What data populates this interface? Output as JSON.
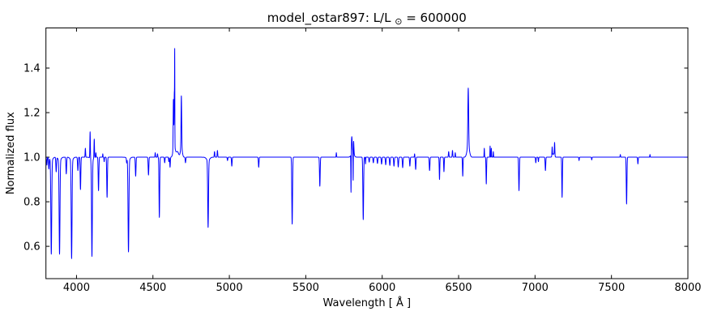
{
  "chart_data": {
    "type": "line",
    "title": "model_ostar897: L/L⊙ = 600000",
    "title_parts": {
      "main": "model_ostar897: L/L",
      "subscript": "⊙",
      "rest": " = 600000"
    },
    "xlabel": "Wavelength [ Å ]",
    "ylabel": "Normalized flux",
    "xlim": [
      3800,
      8000
    ],
    "ylim": [
      0.455,
      1.58
    ],
    "xticks": [
      4000,
      4500,
      5000,
      5500,
      6000,
      6500,
      7000,
      7500,
      8000
    ],
    "xtick_labels": [
      "4000",
      "4500",
      "5000",
      "5500",
      "6000",
      "6500",
      "7000",
      "7500",
      "8000"
    ],
    "yticks": [
      0.6,
      0.8,
      1.0,
      1.2,
      1.4
    ],
    "ytick_labels": [
      "0.6",
      "0.8",
      "1.0",
      "1.2",
      "1.4"
    ],
    "grid": false,
    "legend": null,
    "line_color": "#0000ff",
    "axis_color": "#000000",
    "background": "#ffffff",
    "continuum": 1.0,
    "series_name": "normalized flux spectrum",
    "lines": [
      {
        "wl": 3806,
        "amp": -0.035,
        "sigma": 2.0
      },
      {
        "wl": 3819,
        "amp": -0.05,
        "sigma": 2.0
      },
      {
        "wl": 3835,
        "amp": -0.42,
        "sigma": 2.8
      },
      {
        "wl": 3835,
        "amp": -0.015,
        "sigma": 9
      },
      {
        "wl": 3867,
        "amp": -0.065,
        "sigma": 2.2
      },
      {
        "wl": 3889,
        "amp": -0.42,
        "sigma": 2.8
      },
      {
        "wl": 3889,
        "amp": -0.015,
        "sigma": 9
      },
      {
        "wl": 3933,
        "amp": -0.075,
        "sigma": 2.2
      },
      {
        "wl": 3968,
        "amp": -0.44,
        "sigma": 2.8
      },
      {
        "wl": 3968,
        "amp": -0.015,
        "sigma": 9
      },
      {
        "wl": 4009,
        "amp": -0.06,
        "sigma": 2.2
      },
      {
        "wl": 4026,
        "amp": -0.145,
        "sigma": 2.2
      },
      {
        "wl": 4058,
        "amp": 0.04,
        "sigma": 1.6
      },
      {
        "wl": 4089,
        "amp": 0.12,
        "sigma": 1.6
      },
      {
        "wl": 4101,
        "amp": -0.43,
        "sigma": 2.6
      },
      {
        "wl": 4101,
        "amp": -0.015,
        "sigma": 9
      },
      {
        "wl": 4116,
        "amp": 0.085,
        "sigma": 1.6
      },
      {
        "wl": 4127,
        "amp": 0.02,
        "sigma": 1.5
      },
      {
        "wl": 4144,
        "amp": -0.15,
        "sigma": 2.2
      },
      {
        "wl": 4172,
        "amp": 0.015,
        "sigma": 1.2
      },
      {
        "wl": 4181,
        "amp": -0.02,
        "sigma": 1.5
      },
      {
        "wl": 4200,
        "amp": -0.18,
        "sigma": 2.2
      },
      {
        "wl": 4328,
        "amp": -0.02,
        "sigma": 1.5
      },
      {
        "wl": 4340,
        "amp": -0.41,
        "sigma": 2.8
      },
      {
        "wl": 4340,
        "amp": -0.015,
        "sigma": 9
      },
      {
        "wl": 4387,
        "amp": -0.085,
        "sigma": 2.2
      },
      {
        "wl": 4471,
        "amp": -0.08,
        "sigma": 2.2
      },
      {
        "wl": 4515,
        "amp": 0.02,
        "sigma": 1.5
      },
      {
        "wl": 4530,
        "amp": 0.015,
        "sigma": 1.5
      },
      {
        "wl": 4542,
        "amp": -0.27,
        "sigma": 2.2
      },
      {
        "wl": 4577,
        "amp": -0.025,
        "sigma": 1.8
      },
      {
        "wl": 4604,
        "amp": -0.02,
        "sigma": 1.5
      },
      {
        "wl": 4612,
        "amp": -0.045,
        "sigma": 1.8
      },
      {
        "wl": 4634,
        "amp": 0.22,
        "sigma": 1.7
      },
      {
        "wl": 4639,
        "amp": 0.05,
        "sigma": 7
      },
      {
        "wl": 4640,
        "amp": 0.24,
        "sigma": 1.7
      },
      {
        "wl": 4642.5,
        "amp": 0.36,
        "sigma": 0.8
      },
      {
        "wl": 4660,
        "amp": 0.025,
        "sigma": 8
      },
      {
        "wl": 4686,
        "amp": 0.23,
        "sigma": 2.0
      },
      {
        "wl": 4686,
        "amp": 0.045,
        "sigma": 6
      },
      {
        "wl": 4713,
        "amp": -0.025,
        "sigma": 2.0
      },
      {
        "wl": 4861,
        "amp": -0.3,
        "sigma": 2.6
      },
      {
        "wl": 4861,
        "amp": -0.015,
        "sigma": 10
      },
      {
        "wl": 4903,
        "amp": 0.025,
        "sigma": 1.8
      },
      {
        "wl": 4922,
        "amp": 0.03,
        "sigma": 1.8
      },
      {
        "wl": 4988,
        "amp": -0.015,
        "sigma": 1.8
      },
      {
        "wl": 5016,
        "amp": -0.04,
        "sigma": 2.0
      },
      {
        "wl": 5192,
        "amp": -0.045,
        "sigma": 2.0
      },
      {
        "wl": 5411,
        "amp": -0.3,
        "sigma": 2.4
      },
      {
        "wl": 5592,
        "amp": -0.13,
        "sigma": 2.2
      },
      {
        "wl": 5700,
        "amp": 0.02,
        "sigma": 1.4
      },
      {
        "wl": 5796,
        "amp": -0.18,
        "sigma": 1.1
      },
      {
        "wl": 5801,
        "amp": 0.075,
        "sigma": 2.6
      },
      {
        "wl": 5806,
        "amp": 0.02,
        "sigma": 9
      },
      {
        "wl": 5810,
        "amp": -0.17,
        "sigma": 1.1
      },
      {
        "wl": 5812,
        "amp": 0.065,
        "sigma": 2.6
      },
      {
        "wl": 5876,
        "amp": -0.28,
        "sigma": 2.4
      },
      {
        "wl": 5891,
        "amp": -0.03,
        "sigma": 1.2
      },
      {
        "wl": 5915,
        "amp": -0.022,
        "sigma": 2.2
      },
      {
        "wl": 5942,
        "amp": -0.025,
        "sigma": 2.2
      },
      {
        "wl": 5969,
        "amp": -0.028,
        "sigma": 2.2
      },
      {
        "wl": 5996,
        "amp": -0.031,
        "sigma": 2.2
      },
      {
        "wl": 6023,
        "amp": -0.034,
        "sigma": 2.2
      },
      {
        "wl": 6050,
        "amp": -0.037,
        "sigma": 2.2
      },
      {
        "wl": 6077,
        "amp": -0.04,
        "sigma": 2.2
      },
      {
        "wl": 6105,
        "amp": -0.044,
        "sigma": 2.2
      },
      {
        "wl": 6134,
        "amp": -0.047,
        "sigma": 2.2
      },
      {
        "wl": 6181,
        "amp": -0.04,
        "sigma": 2.0
      },
      {
        "wl": 6212,
        "amp": 0.015,
        "sigma": 1.3
      },
      {
        "wl": 6219,
        "amp": -0.055,
        "sigma": 2.0
      },
      {
        "wl": 6310,
        "amp": -0.06,
        "sigma": 2.2
      },
      {
        "wl": 6375,
        "amp": -0.1,
        "sigma": 1.8
      },
      {
        "wl": 6404,
        "amp": -0.065,
        "sigma": 1.8
      },
      {
        "wl": 6435,
        "amp": 0.025,
        "sigma": 1.8
      },
      {
        "wl": 6460,
        "amp": 0.03,
        "sigma": 1.8
      },
      {
        "wl": 6478,
        "amp": 0.02,
        "sigma": 1.5
      },
      {
        "wl": 6527,
        "amp": -0.085,
        "sigma": 1.8
      },
      {
        "wl": 6563,
        "amp": 0.26,
        "sigma": 2.6
      },
      {
        "wl": 6563,
        "amp": 0.05,
        "sigma": 8
      },
      {
        "wl": 6668,
        "amp": 0.04,
        "sigma": 1.3
      },
      {
        "wl": 6681,
        "amp": -0.12,
        "sigma": 1.8
      },
      {
        "wl": 6706,
        "amp": 0.05,
        "sigma": 1.2
      },
      {
        "wl": 6714,
        "amp": 0.04,
        "sigma": 1.2
      },
      {
        "wl": 6727,
        "amp": 0.025,
        "sigma": 1.2
      },
      {
        "wl": 6895,
        "amp": -0.15,
        "sigma": 2.2
      },
      {
        "wl": 7005,
        "amp": -0.025,
        "sigma": 1.8
      },
      {
        "wl": 7022,
        "amp": -0.02,
        "sigma": 1.5
      },
      {
        "wl": 7068,
        "amp": -0.06,
        "sigma": 2.0
      },
      {
        "wl": 7112,
        "amp": 0.04,
        "sigma": 1.4
      },
      {
        "wl": 7120,
        "amp": 0.015,
        "sigma": 6
      },
      {
        "wl": 7128,
        "amp": 0.06,
        "sigma": 1.6
      },
      {
        "wl": 7177,
        "amp": -0.18,
        "sigma": 2.0
      },
      {
        "wl": 7288,
        "amp": -0.015,
        "sigma": 1.5
      },
      {
        "wl": 7371,
        "amp": -0.012,
        "sigma": 1.5
      },
      {
        "wl": 7558,
        "amp": 0.012,
        "sigma": 1.5
      },
      {
        "wl": 7599,
        "amp": -0.21,
        "sigma": 2.2
      },
      {
        "wl": 7673,
        "amp": -0.03,
        "sigma": 1.8
      },
      {
        "wl": 7752,
        "amp": 0.012,
        "sigma": 1.3
      }
    ]
  }
}
